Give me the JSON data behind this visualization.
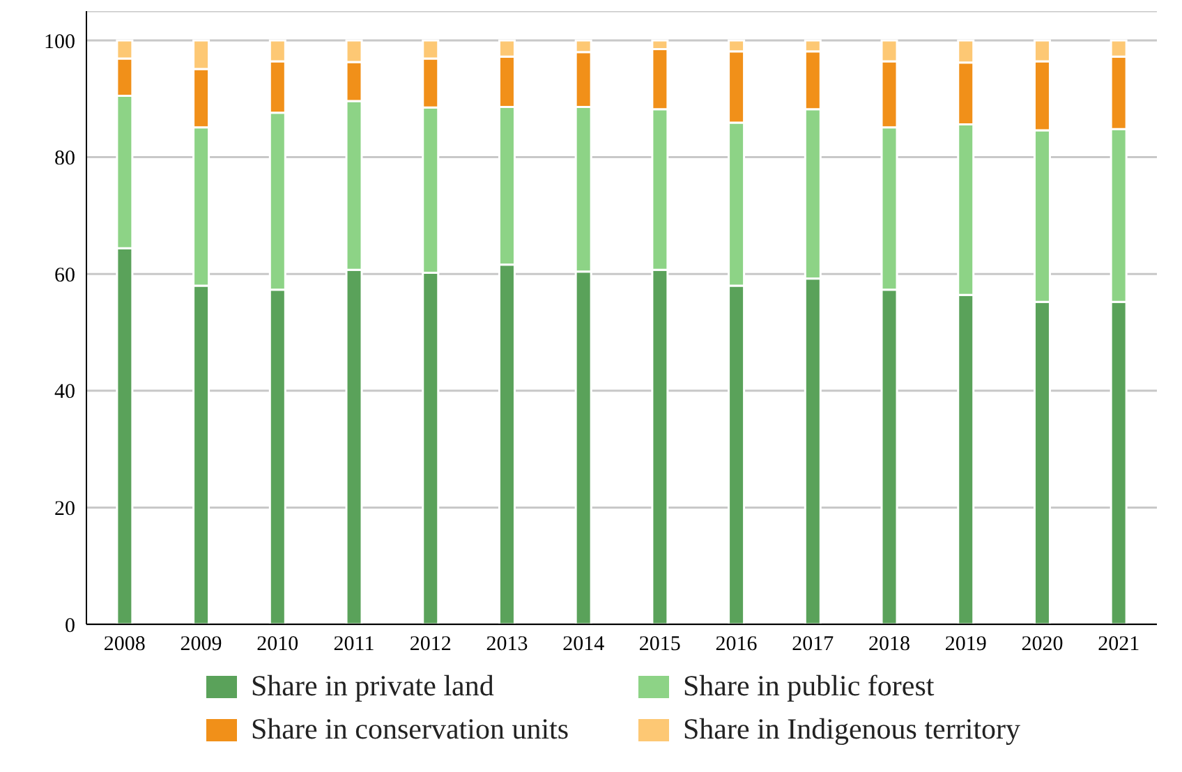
{
  "chart_data": {
    "type": "bar",
    "stacked": true,
    "categories": [
      "2008",
      "2009",
      "2010",
      "2011",
      "2012",
      "2013",
      "2014",
      "2015",
      "2016",
      "2017",
      "2018",
      "2019",
      "2020",
      "2021"
    ],
    "series": [
      {
        "name": "Share in private land",
        "color": "#5aa25a",
        "values": [
          64.4,
          58.0,
          57.3,
          60.7,
          60.2,
          61.6,
          60.4,
          60.7,
          58.0,
          59.2,
          57.3,
          56.4,
          55.2,
          55.2
        ]
      },
      {
        "name": "Share in public forest",
        "color": "#8dd386",
        "values": [
          26.1,
          27.1,
          30.3,
          28.9,
          28.3,
          27.0,
          28.2,
          27.5,
          27.9,
          29.0,
          27.8,
          29.2,
          29.4,
          29.6
        ]
      },
      {
        "name": "Share in conservation units",
        "color": "#f19019",
        "values": [
          6.4,
          10.0,
          8.8,
          6.7,
          8.4,
          8.6,
          9.4,
          10.3,
          12.2,
          9.9,
          11.3,
          10.6,
          11.8,
          12.4
        ]
      },
      {
        "name": "Share in Indigenous territory",
        "color": "#fdc874",
        "values": [
          3.1,
          4.9,
          3.6,
          3.7,
          3.1,
          2.8,
          2.0,
          1.5,
          1.9,
          1.9,
          3.6,
          3.8,
          3.6,
          2.8
        ]
      }
    ],
    "ylim": [
      0,
      105
    ],
    "yticks": [
      0,
      20,
      40,
      60,
      80,
      100
    ],
    "grid": "y",
    "legend": "bottom"
  }
}
